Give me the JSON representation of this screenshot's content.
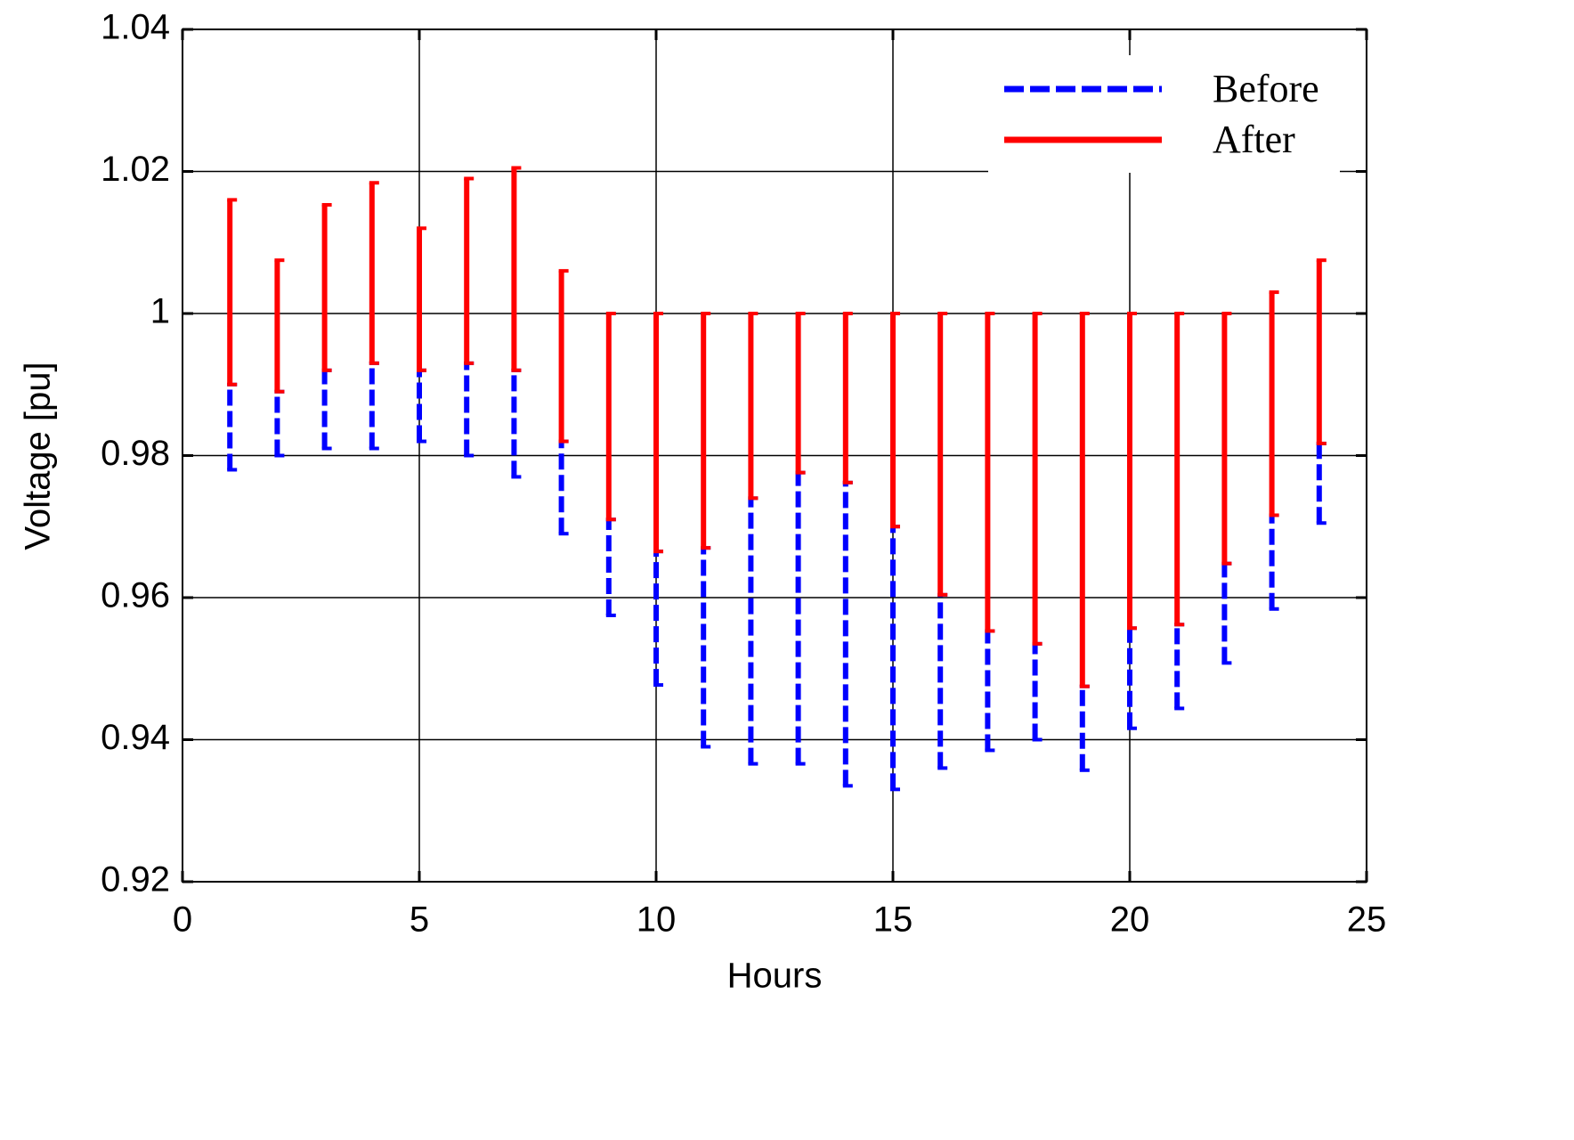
{
  "chart_data": {
    "type": "range_bar",
    "xlabel": "Hours",
    "ylabel": "Voltage [pu]",
    "x": [
      1,
      2,
      3,
      4,
      5,
      6,
      7,
      8,
      9,
      10,
      11,
      12,
      13,
      14,
      15,
      16,
      17,
      18,
      19,
      20,
      21,
      22,
      23,
      24
    ],
    "series": [
      {
        "name": "Before",
        "color": "#0000ff",
        "dashed": true,
        "low": [
          0.978,
          0.98,
          0.981,
          0.981,
          0.982,
          0.98,
          0.977,
          0.969,
          0.9575,
          0.9477,
          0.939,
          0.9366,
          0.9366,
          0.9335,
          0.933,
          0.936,
          0.9385,
          0.94,
          0.9357,
          0.9416,
          0.9444,
          0.9508,
          0.9584,
          0.9705
        ],
        "high": [
          0.99,
          0.989,
          0.992,
          0.993,
          0.992,
          0.993,
          0.992,
          0.982,
          0.971,
          0.9665,
          0.967,
          0.974,
          0.9776,
          0.9762,
          0.97,
          0.9604,
          0.9553,
          0.9535,
          0.9475,
          0.9557,
          0.9562,
          0.9648,
          0.9716,
          0.9817
        ]
      },
      {
        "name": "After",
        "color": "#ff0000",
        "dashed": false,
        "low": [
          0.99,
          0.989,
          0.992,
          0.993,
          0.992,
          0.993,
          0.992,
          0.982,
          0.971,
          0.9665,
          0.967,
          0.974,
          0.9776,
          0.9762,
          0.97,
          0.9604,
          0.9553,
          0.9535,
          0.9475,
          0.9557,
          0.9562,
          0.9648,
          0.9716,
          0.9817
        ],
        "high": [
          1.016,
          1.0075,
          1.0153,
          1.0184,
          1.012,
          1.019,
          1.0205,
          1.006,
          1.0,
          1.0,
          1.0,
          1.0,
          1.0,
          1.0,
          1.0,
          1.0,
          1.0,
          1.0,
          1.0,
          1.0,
          1.0,
          1.0,
          1.003,
          1.0075
        ]
      }
    ],
    "xlim": [
      0,
      25
    ],
    "xticks": [
      0,
      5,
      10,
      15,
      20,
      25
    ],
    "ylim": [
      0.92,
      1.04
    ],
    "yticks": [
      0.92,
      0.94,
      0.96,
      0.98,
      1,
      1.02,
      1.04
    ],
    "grid": true,
    "legend": "upper right"
  }
}
